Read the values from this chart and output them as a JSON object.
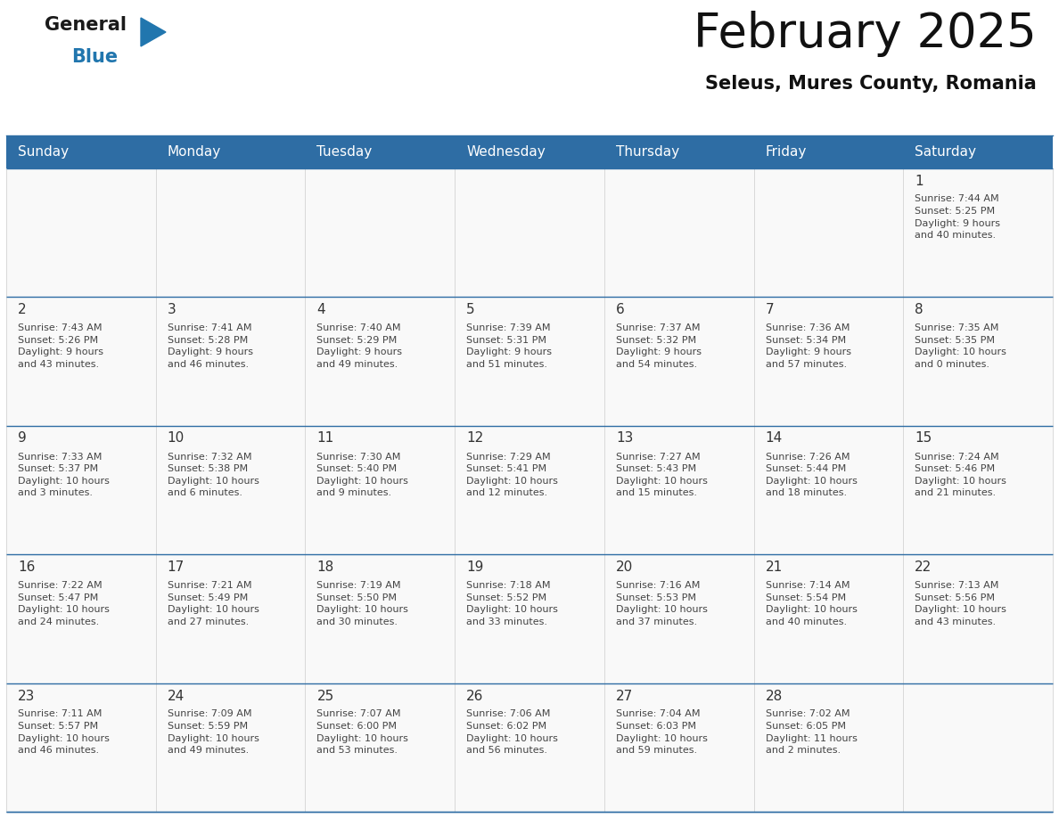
{
  "title": "February 2025",
  "subtitle": "Seleus, Mures County, Romania",
  "header_bg": "#2E6DA4",
  "header_text_color": "#FFFFFF",
  "day_names": [
    "Sunday",
    "Monday",
    "Tuesday",
    "Wednesday",
    "Thursday",
    "Friday",
    "Saturday"
  ],
  "cell_bg": "#F9F9F9",
  "cell_border_color": "#2E6DA4",
  "cell_line_color": "#CCCCCC",
  "day_number_color": "#333333",
  "day_text_color": "#444444",
  "calendar": [
    [
      {
        "day": null,
        "info": ""
      },
      {
        "day": null,
        "info": ""
      },
      {
        "day": null,
        "info": ""
      },
      {
        "day": null,
        "info": ""
      },
      {
        "day": null,
        "info": ""
      },
      {
        "day": null,
        "info": ""
      },
      {
        "day": 1,
        "info": "Sunrise: 7:44 AM\nSunset: 5:25 PM\nDaylight: 9 hours\nand 40 minutes."
      }
    ],
    [
      {
        "day": 2,
        "info": "Sunrise: 7:43 AM\nSunset: 5:26 PM\nDaylight: 9 hours\nand 43 minutes."
      },
      {
        "day": 3,
        "info": "Sunrise: 7:41 AM\nSunset: 5:28 PM\nDaylight: 9 hours\nand 46 minutes."
      },
      {
        "day": 4,
        "info": "Sunrise: 7:40 AM\nSunset: 5:29 PM\nDaylight: 9 hours\nand 49 minutes."
      },
      {
        "day": 5,
        "info": "Sunrise: 7:39 AM\nSunset: 5:31 PM\nDaylight: 9 hours\nand 51 minutes."
      },
      {
        "day": 6,
        "info": "Sunrise: 7:37 AM\nSunset: 5:32 PM\nDaylight: 9 hours\nand 54 minutes."
      },
      {
        "day": 7,
        "info": "Sunrise: 7:36 AM\nSunset: 5:34 PM\nDaylight: 9 hours\nand 57 minutes."
      },
      {
        "day": 8,
        "info": "Sunrise: 7:35 AM\nSunset: 5:35 PM\nDaylight: 10 hours\nand 0 minutes."
      }
    ],
    [
      {
        "day": 9,
        "info": "Sunrise: 7:33 AM\nSunset: 5:37 PM\nDaylight: 10 hours\nand 3 minutes."
      },
      {
        "day": 10,
        "info": "Sunrise: 7:32 AM\nSunset: 5:38 PM\nDaylight: 10 hours\nand 6 minutes."
      },
      {
        "day": 11,
        "info": "Sunrise: 7:30 AM\nSunset: 5:40 PM\nDaylight: 10 hours\nand 9 minutes."
      },
      {
        "day": 12,
        "info": "Sunrise: 7:29 AM\nSunset: 5:41 PM\nDaylight: 10 hours\nand 12 minutes."
      },
      {
        "day": 13,
        "info": "Sunrise: 7:27 AM\nSunset: 5:43 PM\nDaylight: 10 hours\nand 15 minutes."
      },
      {
        "day": 14,
        "info": "Sunrise: 7:26 AM\nSunset: 5:44 PM\nDaylight: 10 hours\nand 18 minutes."
      },
      {
        "day": 15,
        "info": "Sunrise: 7:24 AM\nSunset: 5:46 PM\nDaylight: 10 hours\nand 21 minutes."
      }
    ],
    [
      {
        "day": 16,
        "info": "Sunrise: 7:22 AM\nSunset: 5:47 PM\nDaylight: 10 hours\nand 24 minutes."
      },
      {
        "day": 17,
        "info": "Sunrise: 7:21 AM\nSunset: 5:49 PM\nDaylight: 10 hours\nand 27 minutes."
      },
      {
        "day": 18,
        "info": "Sunrise: 7:19 AM\nSunset: 5:50 PM\nDaylight: 10 hours\nand 30 minutes."
      },
      {
        "day": 19,
        "info": "Sunrise: 7:18 AM\nSunset: 5:52 PM\nDaylight: 10 hours\nand 33 minutes."
      },
      {
        "day": 20,
        "info": "Sunrise: 7:16 AM\nSunset: 5:53 PM\nDaylight: 10 hours\nand 37 minutes."
      },
      {
        "day": 21,
        "info": "Sunrise: 7:14 AM\nSunset: 5:54 PM\nDaylight: 10 hours\nand 40 minutes."
      },
      {
        "day": 22,
        "info": "Sunrise: 7:13 AM\nSunset: 5:56 PM\nDaylight: 10 hours\nand 43 minutes."
      }
    ],
    [
      {
        "day": 23,
        "info": "Sunrise: 7:11 AM\nSunset: 5:57 PM\nDaylight: 10 hours\nand 46 minutes."
      },
      {
        "day": 24,
        "info": "Sunrise: 7:09 AM\nSunset: 5:59 PM\nDaylight: 10 hours\nand 49 minutes."
      },
      {
        "day": 25,
        "info": "Sunrise: 7:07 AM\nSunset: 6:00 PM\nDaylight: 10 hours\nand 53 minutes."
      },
      {
        "day": 26,
        "info": "Sunrise: 7:06 AM\nSunset: 6:02 PM\nDaylight: 10 hours\nand 56 minutes."
      },
      {
        "day": 27,
        "info": "Sunrise: 7:04 AM\nSunset: 6:03 PM\nDaylight: 10 hours\nand 59 minutes."
      },
      {
        "day": 28,
        "info": "Sunrise: 7:02 AM\nSunset: 6:05 PM\nDaylight: 11 hours\nand 2 minutes."
      },
      {
        "day": null,
        "info": ""
      }
    ]
  ],
  "logo_general_color": "#1a1a1a",
  "logo_blue_color": "#2176AE",
  "logo_triangle_color": "#2176AE",
  "title_fontsize": 38,
  "subtitle_fontsize": 15,
  "header_fontsize": 11,
  "day_num_fontsize": 11,
  "info_fontsize": 8
}
